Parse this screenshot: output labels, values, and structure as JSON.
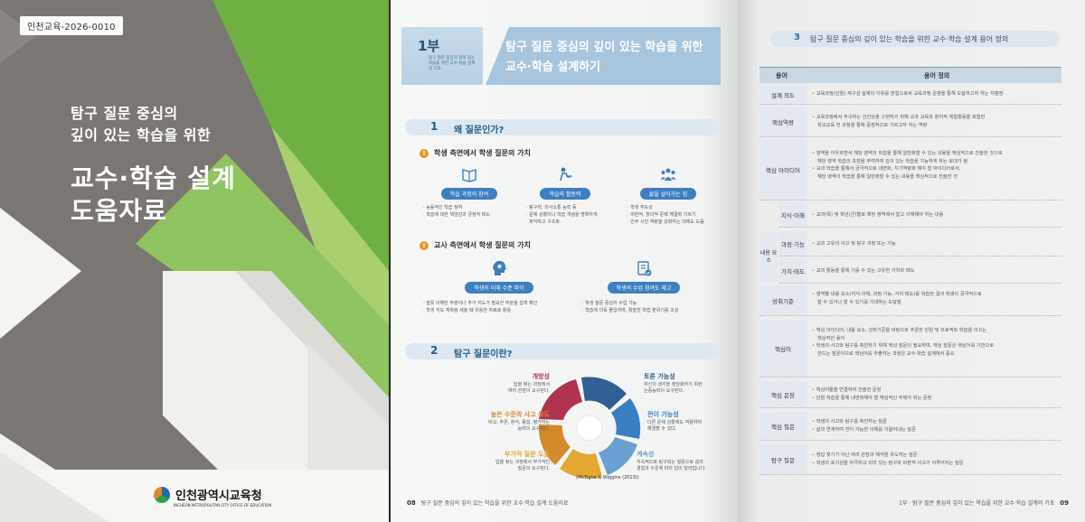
{
  "cover": {
    "code": "인천교육-2026-0010",
    "subtitle_1": "탐구 질문 중심의",
    "subtitle_2": "깊이 있는 학습을 위한",
    "title_1": "교수·학습 설계",
    "title_2": "도움자료",
    "publisher": "인천광역시교육청",
    "publisher_en": "INCHEON METROPOLITAN CITY OFFICE OF EDUCATION",
    "colors": {
      "green": "#6fb043",
      "light_green": "#a9cf6e",
      "gray": "#7a7772",
      "white": "#f4f4f1"
    }
  },
  "left_page": {
    "part_no": "1부",
    "part_desc": "탐구 질문 중심의 깊이 있는 학습을 위한 교수·학습 설계의 기초",
    "header_1": "탐구 질문 중심의 깊이 있는 학습을 위한",
    "header_2": "교수·학습 설계하기",
    "section1": {
      "num": "1",
      "label": "왜 질문인가?"
    },
    "sub_student": "학생 측면에서 학생 질문의 가치",
    "student_values": [
      {
        "icon": "book-icon",
        "label": "학습 과정의 참여",
        "bullets": [
          "능동적인 학습 참여",
          "학습에 대한 책임감과 긍정적 태도"
        ]
      },
      {
        "icon": "student-desk-icon",
        "label": "학습의 활동력",
        "bullets": [
          "탐구력, 의사소통 능력 등",
          "문제 상황이나 학습 개념을 명확하게",
          "파악하고 구조화"
        ]
      },
      {
        "icon": "group-icon",
        "label": "삶을 살아가는 힘",
        "bullets": [
          "학생 주도성",
          "비판적, 창의적 문제 해결력 기르기",
          "민주 시민 역량을 강화하는 데에도 도움"
        ]
      }
    ],
    "sub_teacher": "교사 측면에서 학생 질문의 가치",
    "teacher_values": [
      {
        "icon": "head-gear-icon",
        "label": "학생의 이해 수준 파악",
        "bullets": [
          "잘못 이해한 부분이나 추가 지도가 필요한 부분을 쉽게 확인",
          "학생 지도 계획을 세울 때 유용한 자료로 활용"
        ]
      },
      {
        "icon": "clipboard-check-icon",
        "label": "학생의 수업 참여도 제고",
        "bullets": [
          "학생 질문 중심의 수업 가능",
          "학습에 더욱 몰입하며, 활발한 학습 분위기를 조성"
        ]
      }
    ],
    "section2": {
      "num": "2",
      "label": "탐구 질문이란?"
    },
    "qualities": [
      {
        "name": "개방성",
        "desc": [
          "답을 찾는 과정에서",
          "여러 관점이 요구된다."
        ],
        "color": "#b0344f"
      },
      {
        "name": "토론 가능성",
        "desc": [
          "자신의 생각을 정당화하기 위한",
          "논증능력이 요구된다."
        ],
        "color": "#2f5f93"
      },
      {
        "name": "높은 수준의 사고 유도",
        "desc": [
          "비교, 추론, 분석, 종합, 평가하는",
          "능력이 요구된다."
        ],
        "color": "#d4892a"
      },
      {
        "name": "전이 가능성",
        "desc": [
          "다른 문제 상황에도 적용하여",
          "해결할 수 있다."
        ],
        "color": "#3a7fc1"
      },
      {
        "name": "부가적 질문 도출",
        "desc": [
          "답을 찾는 과정에서 부가적인",
          "질문이 요구된다."
        ],
        "color": "#e2a82f"
      },
      {
        "name": "계속성",
        "desc": [
          "지속적으로 탐구되는 질문으로 삶의",
          "경험과 수준에 따라 답이 달라집니다."
        ],
        "color": "#6a9fd3"
      }
    ],
    "citation": "(McTighe & Wiggins (2013))",
    "page_no": "08",
    "footer": "탐구 질문 중심의 깊이 있는 학습을 위한 교수·학습 설계 도움자료"
  },
  "right_page": {
    "section": {
      "num": "3",
      "label": "탐구 질문 중심의 깊이 있는 학습을 위한 교수·학습 설계 용어 정의"
    },
    "table_headers": [
      "용어",
      "용어 정의"
    ],
    "content_group": "내용 요소",
    "rows": [
      {
        "term": "설계 의도",
        "defs": [
          "교육과정(단원) 재구성 설계의 이유를 밝힘으로써 교육과정 운영을 통해 도달하고자 하는 지향점"
        ]
      },
      {
        "term": "핵심역량",
        "defs": [
          "교육과정에서 추구하는 인간상을 구현하기 위해 교과 교육과 창의적 체험활동을 포함한",
          "학교교육 전 과정을 통해 중점적으로 기르고자 하는 역량"
        ]
      },
      {
        "term": "핵심 아이디어",
        "defs": [
          "영역을 아우르면서 해당 영역의 학습을 통해 일반화할 수 있는 내용을 핵심적으로 진술한 것으로",
          "해당 영역 학습의 초점을 부여하여 깊이 있는 학습을 가능하게 하는 토대가 됨",
          "교과 학습을 통해서 궁극적으로 내면화, 지기역량화 해야 할 아이디어로서,",
          "해당 영역의 학습을 통해 일반화할 수 있는 내용을 핵심적으로 진술한 것"
        ]
      },
      {
        "term": "지식·이해",
        "defs": [
          "교과(목) 및 학년(군)별로 해당 영역에서 알고 이해해야 하는 내용"
        ]
      },
      {
        "term": "과정·기능",
        "defs": [
          "교과 고유의 사고 및 탐구 과정 또는 기능"
        ]
      },
      {
        "term": "가치·태도",
        "defs": [
          "교과 활동을 통해 기를 수 있는 고유한 가치와 태도"
        ]
      },
      {
        "term": "성취기준",
        "defs": [
          "영역별 내용 요소(지식·이해, 과정·기능, 가치·태도)를 학습한 결과 학생이 궁극적으로",
          "할 수 있거나 할 수 있기를 기대하는 도달점"
        ]
      },
      {
        "term": "핵심어",
        "defs": [
          "핵심 아이디어, 내용 요소, 성취기준을 바탕으로 추론한 단원 및 프로젝트 학습을 이끄는",
          "핵심적인 용어",
          "학생의 사고와 탐구를 촉진하기 위해 핵심 질문이 필요하며, 핵심 질문은 핵심어를 기반으로",
          "만드는 질문이므로 핵심어를 추출하는 과정은 교수·학습 설계에서 중요"
        ]
      },
      {
        "term": "핵심 문장",
        "defs": [
          "핵심어들을 연결하여 진술한 문장",
          "단원 학습을 통해 내면화해야 할 핵심적인 주제가 되는 문장"
        ]
      },
      {
        "term": "핵심 질문",
        "defs": [
          "학생의 사고와 탐구를 촉진하는 질문",
          "삶과 연계하여 전이 가능한 이해를 이끌어내는 질문"
        ]
      },
      {
        "term": "탐구 질문",
        "defs": [
          "정답 찾기가 아닌 여러 관점과 해석을 유도하는 질문",
          "학생의 호기심을 자극하고 의미 있는 탐구와 비판적 사고가 이루어지는 질문"
        ]
      }
    ],
    "page_no": "09",
    "footer": "1부 · 탐구 질문 중심의 깊이 있는 학습을 위한 교수·학습 설계의 기초"
  }
}
